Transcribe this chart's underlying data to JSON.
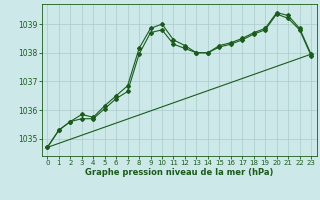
{
  "title": "Graphe pression niveau de la mer (hPa)",
  "background_color": "#cce8e8",
  "grid_color": "#aacccc",
  "line_color": "#1a5c1a",
  "xlim": [
    -0.5,
    23.5
  ],
  "ylim": [
    1034.4,
    1039.7
  ],
  "yticks": [
    1035,
    1036,
    1037,
    1038,
    1039
  ],
  "xticks": [
    0,
    1,
    2,
    3,
    4,
    5,
    6,
    7,
    8,
    9,
    10,
    11,
    12,
    13,
    14,
    15,
    16,
    17,
    18,
    19,
    20,
    21,
    22,
    23
  ],
  "series1_x": [
    0,
    1,
    2,
    3,
    4,
    5,
    6,
    7,
    8,
    9,
    10,
    11,
    12,
    13,
    14,
    15,
    16,
    17,
    18,
    19,
    20,
    21,
    22,
    23
  ],
  "series1_y": [
    1034.7,
    1035.3,
    1035.6,
    1035.85,
    1035.75,
    1036.15,
    1036.5,
    1036.85,
    1038.15,
    1038.85,
    1039.0,
    1038.45,
    1038.25,
    1038.0,
    1038.0,
    1038.25,
    1038.35,
    1038.5,
    1038.7,
    1038.85,
    1039.4,
    1039.3,
    1038.85,
    1037.95
  ],
  "series2_x": [
    0,
    1,
    2,
    3,
    4,
    5,
    6,
    7,
    8,
    9,
    10,
    11,
    12,
    13,
    14,
    15,
    16,
    17,
    18,
    19,
    20,
    21,
    22,
    23
  ],
  "series2_y": [
    1034.7,
    1035.3,
    1035.6,
    1035.7,
    1035.7,
    1036.05,
    1036.4,
    1036.65,
    1037.95,
    1038.7,
    1038.8,
    1038.3,
    1038.15,
    1038.0,
    1038.0,
    1038.2,
    1038.3,
    1038.45,
    1038.65,
    1038.8,
    1039.35,
    1039.2,
    1038.8,
    1037.9
  ],
  "series3_x": [
    0,
    23
  ],
  "series3_y": [
    1034.7,
    1037.95
  ]
}
